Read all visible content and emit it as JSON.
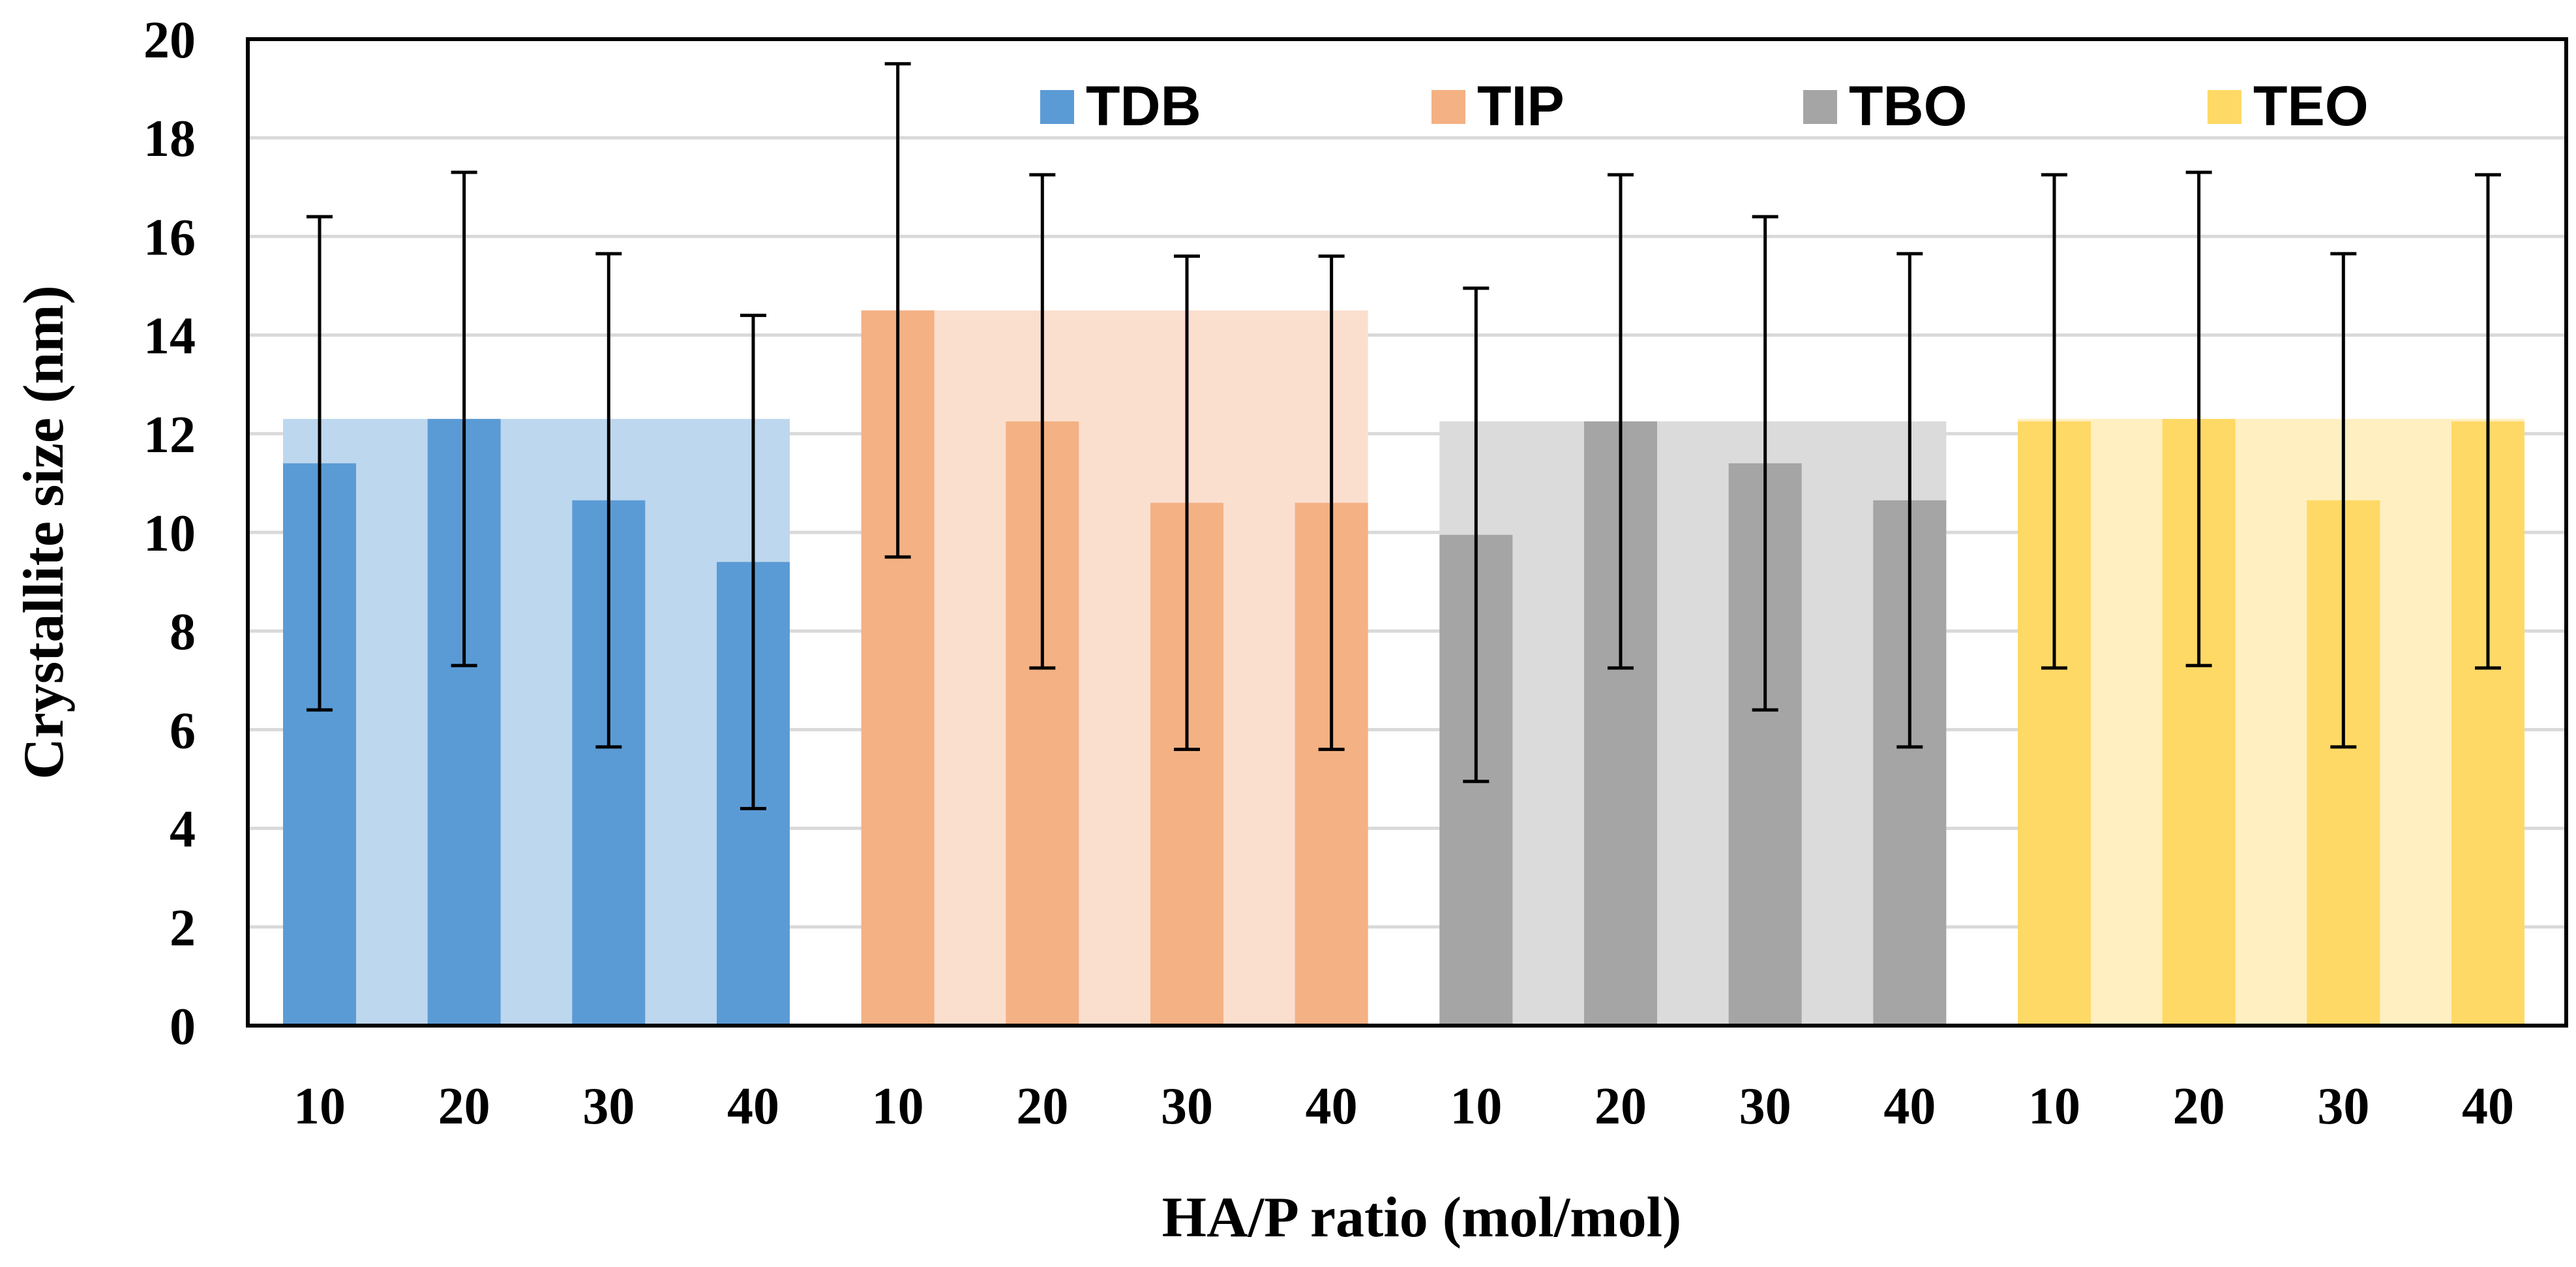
{
  "chart_data": {
    "type": "bar",
    "xlabel": "HA/P ratio (mol/mol)",
    "ylabel": "Crystallite size (nm)",
    "ylim": [
      0,
      20
    ],
    "yticks": [
      0,
      2,
      4,
      6,
      8,
      10,
      12,
      14,
      16,
      18,
      20
    ],
    "grid": true,
    "legend_position": "top",
    "groups": [
      {
        "name": "TDB",
        "color": "#5B9BD5",
        "band_color": "#BDD7EE",
        "band_level": 12.3,
        "categories": [
          "10",
          "20",
          "30",
          "40"
        ],
        "values": [
          11.4,
          12.3,
          10.65,
          9.4
        ],
        "errors": [
          5.0,
          5.0,
          5.0,
          5.0
        ]
      },
      {
        "name": "TIP",
        "color": "#F4B183",
        "band_color": "#FADFCF",
        "band_level": 14.5,
        "categories": [
          "10",
          "20",
          "30",
          "40"
        ],
        "values": [
          14.5,
          12.25,
          10.6,
          10.6
        ],
        "errors": [
          5.0,
          5.0,
          5.0,
          5.0
        ]
      },
      {
        "name": "TBO",
        "color": "#A5A5A5",
        "band_color": "#DBDBDB",
        "band_level": 12.25,
        "categories": [
          "10",
          "20",
          "30",
          "40"
        ],
        "values": [
          9.95,
          12.25,
          11.4,
          10.65
        ],
        "errors": [
          5.0,
          5.0,
          5.0,
          5.0
        ]
      },
      {
        "name": "TEO",
        "color": "#FFD966",
        "band_color": "#FFEFC1",
        "band_level": 12.3,
        "categories": [
          "10",
          "20",
          "30",
          "40"
        ],
        "values": [
          12.25,
          12.3,
          10.65,
          12.25
        ],
        "errors": [
          5.0,
          5.0,
          5.0,
          5.0
        ]
      }
    ]
  }
}
